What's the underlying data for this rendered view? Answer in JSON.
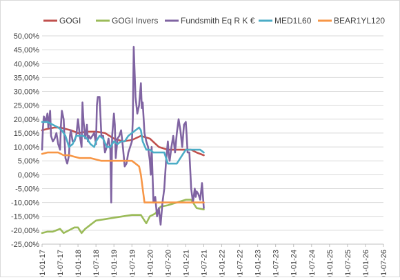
{
  "chart_data": {
    "type": "line",
    "title": "",
    "xlabel": "",
    "ylabel": "",
    "ylim": [
      -25,
      50
    ],
    "y_ticks": [
      50,
      45,
      40,
      35,
      30,
      25,
      20,
      15,
      10,
      5,
      0,
      -5,
      -10,
      -15,
      -20,
      -25
    ],
    "y_tick_labels": [
      "50,00%",
      "45,00%",
      "40,00%",
      "35,00%",
      "30,00%",
      "25,00%",
      "20,00%",
      "15,00%",
      "10,00%",
      "5,00%",
      "0,00%",
      "-5,00%",
      "-10,00%",
      "-15,00%",
      "-20,00%",
      "-25,00%"
    ],
    "x_tick_labels": [
      "01-01-17",
      "01-07-17",
      "01-01-18",
      "01-07-18",
      "01-01-19",
      "01-07-19",
      "01-01-20",
      "01-07-20",
      "01-01-21",
      "01-07-21",
      "01-01-22",
      "01-07-22",
      "01-01-23",
      "01-07-23",
      "01-01-24",
      "01-07-24",
      "01-01-25",
      "01-07-25",
      "01-01-26",
      "01-07-26"
    ],
    "grid": "horizontal",
    "legend_position": "top",
    "series": [
      {
        "name": "GOGI",
        "color": "#C0504D",
        "x": [
          0,
          0.3,
          0.7,
          1.0,
          1.3,
          1.6,
          2.0,
          2.5,
          3.0,
          3.5,
          4.0,
          4.5,
          5.0,
          5.5,
          6.0,
          6.5,
          7.0,
          7.5,
          8.0,
          8.3,
          8.6,
          9.0
        ],
        "values": [
          16,
          16.5,
          17,
          17,
          16.5,
          16,
          15,
          15.5,
          15.5,
          15,
          13,
          12,
          12.5,
          14,
          13,
          10,
          9,
          9,
          9,
          9,
          8,
          7
        ]
      },
      {
        "name": "GOGI Invers",
        "color": "#9BBB59",
        "x": [
          0,
          0.3,
          0.6,
          1.0,
          1.2,
          1.5,
          1.8,
          2.0,
          2.2,
          2.4,
          2.7,
          3.0,
          3.5,
          4.0,
          4.5,
          5.0,
          5.5,
          5.8,
          6.0,
          6.3,
          6.6,
          7.0,
          7.5,
          8.0,
          8.3,
          8.6,
          9.0
        ],
        "values": [
          -21,
          -20.5,
          -20.5,
          -19.5,
          -21,
          -20,
          -19,
          -19,
          -21,
          -19.5,
          -18,
          -16.5,
          -16,
          -15.5,
          -15,
          -14.5,
          -14.5,
          -17.5,
          -15,
          -14,
          -11.5,
          -11,
          -10,
          -9,
          -9,
          -12,
          -12.5
        ]
      },
      {
        "name": "Fundsmith Eq R K €",
        "color": "#8064A2",
        "x": [
          0,
          0.05,
          0.1,
          0.2,
          0.3,
          0.35,
          0.45,
          0.5,
          0.6,
          0.7,
          0.8,
          0.9,
          1.0,
          1.05,
          1.1,
          1.2,
          1.3,
          1.4,
          1.5,
          1.55,
          1.6,
          1.7,
          1.8,
          1.9,
          2.0,
          2.1,
          2.2,
          2.25,
          2.3,
          2.4,
          2.5,
          2.55,
          2.6,
          2.7,
          2.8,
          2.9,
          3.0,
          3.05,
          3.1,
          3.2,
          3.3,
          3.4,
          3.5,
          3.6,
          3.7,
          3.8,
          3.85,
          3.9,
          4.0,
          4.05,
          4.1,
          4.2,
          4.3,
          4.4,
          4.5,
          4.6,
          4.7,
          4.8,
          4.9,
          5.0,
          5.05,
          5.1,
          5.2,
          5.3,
          5.4,
          5.5,
          5.55,
          5.6,
          5.7,
          5.8,
          5.9,
          6.0,
          6.05,
          6.1,
          6.2,
          6.3,
          6.4,
          6.5,
          6.6,
          6.7,
          6.8,
          6.9,
          7.0,
          7.05,
          7.1,
          7.2,
          7.3,
          7.4,
          7.5,
          7.6,
          7.7,
          7.8,
          7.9,
          8.0,
          8.05,
          8.1,
          8.2,
          8.3,
          8.4,
          8.5,
          8.55,
          8.6,
          8.7,
          8.8,
          8.9,
          9.0
        ],
        "values": [
          9,
          17,
          21,
          19,
          22,
          17,
          23,
          14,
          12,
          13,
          15,
          11,
          9,
          18,
          23,
          20,
          6,
          4,
          7,
          14,
          16,
          12,
          12,
          14,
          20,
          14,
          10,
          26,
          20,
          13,
          18,
          12,
          14,
          13,
          14,
          15,
          11,
          25,
          28,
          28,
          14,
          14,
          8,
          10,
          13,
          9,
          -10,
          14,
          22,
          18,
          6,
          13,
          14,
          16,
          10,
          3,
          4,
          8,
          10,
          12,
          20,
          46,
          28,
          22,
          25,
          33,
          24,
          26,
          15,
          12,
          10,
          5,
          0,
          10,
          -10,
          -8,
          -15,
          -12,
          -18,
          -10,
          -5,
          5,
          12,
          7,
          5,
          10,
          14,
          8,
          15,
          20,
          16,
          10,
          18,
          19,
          14,
          8,
          8,
          -5,
          -10,
          -5,
          -8,
          -6,
          -7,
          -9,
          -3,
          -12
        ]
      },
      {
        "name": "MED1L60",
        "color": "#4BACC6",
        "x": [
          0,
          0.3,
          0.6,
          0.9,
          1.1,
          1.3,
          1.5,
          1.7,
          1.9,
          2.1,
          2.3,
          2.5,
          2.7,
          2.9,
          3.0,
          3.2,
          3.4,
          3.6,
          3.8,
          4.0,
          4.2,
          4.4,
          4.6,
          4.8,
          5.0,
          5.2,
          5.4,
          5.5,
          5.6,
          5.8,
          6.0,
          6.2,
          6.5,
          6.8,
          7.0,
          7.2,
          7.5,
          7.8,
          8.0,
          8.2,
          8.5,
          8.8,
          9.0
        ],
        "values": [
          19,
          19,
          18,
          17,
          16,
          14,
          10,
          11,
          14,
          14,
          14,
          13,
          11,
          10,
          12,
          14,
          13,
          10,
          10,
          12,
          11,
          12,
          12,
          14,
          15,
          16,
          17,
          16,
          12,
          9,
          9,
          8,
          8,
          8,
          4,
          4,
          4,
          7,
          9,
          9,
          9,
          9,
          8
        ]
      },
      {
        "name": "BEAR1YL120",
        "color": "#F79646",
        "x": [
          0,
          0.3,
          0.6,
          0.9,
          1.2,
          1.5,
          1.8,
          2.1,
          2.4,
          2.7,
          3.0,
          3.3,
          3.6,
          4.0,
          4.4,
          4.8,
          5.0,
          5.2,
          5.4,
          5.5,
          5.6,
          5.7,
          5.8,
          6.0,
          6.3,
          6.6,
          7.0,
          7.5,
          8.0,
          8.3,
          8.6,
          8.9,
          9.0
        ],
        "values": [
          7.5,
          8,
          8,
          8,
          7,
          7,
          6.5,
          6,
          6,
          6,
          5.5,
          5,
          5,
          5,
          5,
          5,
          5,
          4,
          3,
          0,
          -5,
          -10,
          -10,
          -10,
          -10,
          -10,
          -10,
          -10,
          -10,
          -10,
          -10,
          -10,
          -10
        ]
      }
    ]
  }
}
